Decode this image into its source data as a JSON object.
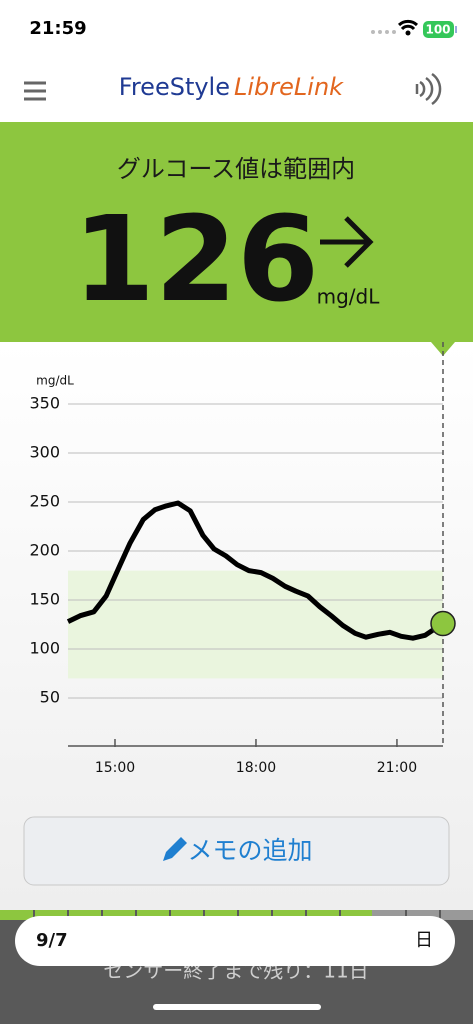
{
  "status_bar": {
    "time": "21:59",
    "battery": "100"
  },
  "header": {
    "brand_1": "FreeStyle",
    "brand_2": "LibreLink"
  },
  "reading": {
    "status": "グルコース値は範囲内",
    "value": 126,
    "unit": "mg/dL"
  },
  "chart_data": {
    "type": "line",
    "y_label": "mg/dL",
    "x": [
      14.0,
      14.26,
      14.55,
      14.81,
      15.11,
      15.32,
      15.6,
      15.85,
      16.09,
      16.34,
      16.6,
      16.87,
      17.11,
      17.36,
      17.6,
      17.85,
      18.11,
      18.36,
      18.62,
      18.85,
      19.11,
      19.36,
      19.6,
      19.85,
      20.11,
      20.34,
      20.6,
      20.85,
      21.09,
      21.34,
      21.6,
      21.85,
      21.98
    ],
    "series": [
      {
        "color": "#000000",
        "values": [
          128,
          134,
          138,
          154,
          186,
          208,
          232,
          242,
          246,
          249,
          241,
          216,
          202,
          195,
          186,
          180,
          178,
          172,
          164,
          159,
          154,
          143,
          134,
          124,
          116,
          112,
          115,
          117,
          113,
          111,
          114,
          122,
          126
        ]
      }
    ],
    "current_color": "#8dc63f",
    "xlim": [
      14.0,
      21.98
    ],
    "ylim": [
      0,
      350
    ],
    "xticks": [
      {
        "value": 15,
        "label": "15:00"
      },
      {
        "value": 18,
        "label": "18:00"
      },
      {
        "value": 21,
        "label": "21:00"
      }
    ],
    "yticks": [
      50,
      100,
      150,
      200,
      250,
      300,
      350
    ],
    "target_range": [
      70,
      180
    ],
    "target_color": "#eaf5de",
    "grid": true
  },
  "memo_button": {
    "label": "メモの追加"
  },
  "sensor": {
    "remaining": "センサー終了まで残り：11日"
  },
  "date_bar": {
    "date": "9/7",
    "period": "日"
  }
}
